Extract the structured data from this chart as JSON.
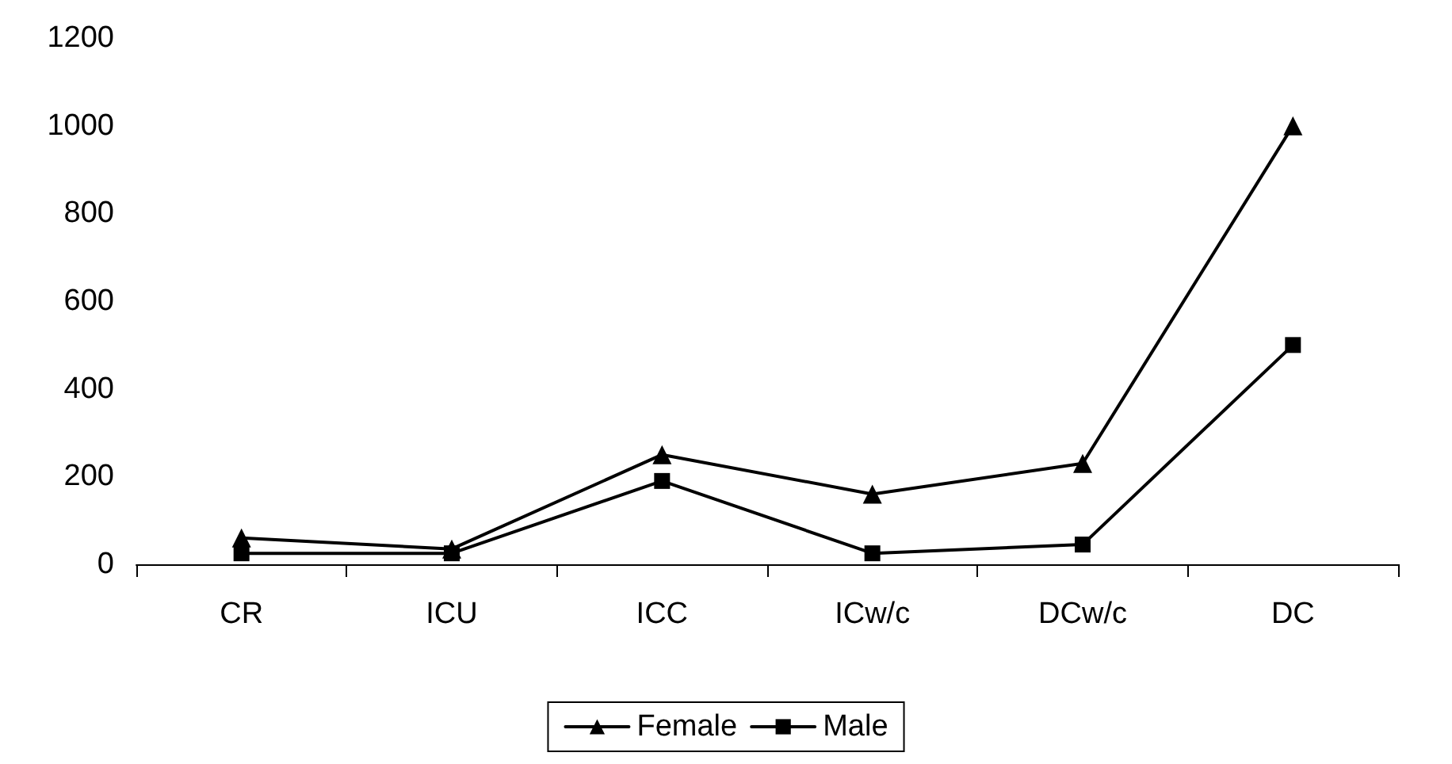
{
  "chart_data": {
    "type": "line",
    "categories": [
      "CR",
      "ICU",
      "ICC",
      "ICw/c",
      "DCw/c",
      "DC"
    ],
    "series": [
      {
        "name": "Female",
        "color": "#000000",
        "marker": "triangle",
        "values": [
          60,
          35,
          250,
          160,
          230,
          1000
        ]
      },
      {
        "name": "Male",
        "color": "#000000",
        "marker": "square",
        "values": [
          25,
          25,
          190,
          25,
          45,
          500
        ]
      }
    ],
    "ylim": [
      0,
      1200
    ],
    "yticks": [
      0,
      200,
      400,
      600,
      800,
      1000,
      1200
    ],
    "grid": false,
    "legend": "bottom",
    "line_style": "solid"
  }
}
